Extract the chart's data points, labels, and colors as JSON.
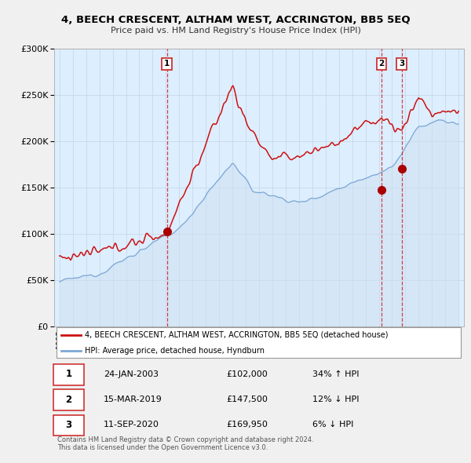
{
  "title": "4, BEECH CRESCENT, ALTHAM WEST, ACCRINGTON, BB5 5EQ",
  "subtitle": "Price paid vs. HM Land Registry's House Price Index (HPI)",
  "ylim": [
    0,
    300000
  ],
  "hpi_color": "#7aa7d4",
  "hpi_fill_color": "#cfe0f0",
  "price_color": "#cc1111",
  "sale_marker_color": "#aa0000",
  "dashed_color": "#cc2222",
  "background_color": "#f0f0f0",
  "plot_bg_color": "#ddeeff",
  "transactions": [
    {
      "label": "1",
      "date_num": 2003.07,
      "price": 102000
    },
    {
      "label": "2",
      "date_num": 2019.21,
      "price": 147500
    },
    {
      "label": "3",
      "date_num": 2020.71,
      "price": 169950
    }
  ],
  "legend_price_label": "4, BEECH CRESCENT, ALTHAM WEST, ACCRINGTON, BB5 5EQ (detached house)",
  "legend_hpi_label": "HPI: Average price, detached house, Hyndburn",
  "table_rows": [
    {
      "num": "1",
      "date": "24-JAN-2003",
      "price": "£102,000",
      "change": "34% ↑ HPI"
    },
    {
      "num": "2",
      "date": "15-MAR-2019",
      "price": "£147,500",
      "change": "12% ↓ HPI"
    },
    {
      "num": "3",
      "date": "11-SEP-2020",
      "price": "£169,950",
      "change": "6% ↓ HPI"
    }
  ],
  "footnote": "Contains HM Land Registry data © Crown copyright and database right 2024.\nThis data is licensed under the Open Government Licence v3.0.",
  "xmin": 1994.6,
  "xmax": 2025.4
}
